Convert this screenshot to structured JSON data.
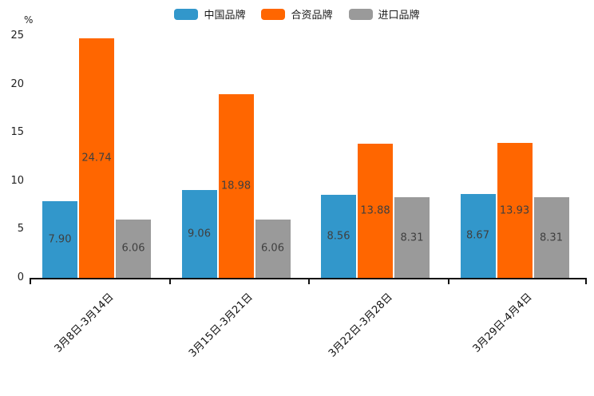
{
  "chart_data": {
    "type": "bar",
    "title": "",
    "ylabel": "%",
    "xlabel": "",
    "ylim": [
      0,
      25
    ],
    "yticks": [
      0,
      5,
      10,
      15,
      20,
      25
    ],
    "grid": false,
    "legend_position": "top",
    "value_labels_shown": true,
    "value_label_decimals": 2,
    "categories": [
      "3月8日-3月14日",
      "3月15日-3月21日",
      "3月22日-3月28日",
      "3月29日-4月4日"
    ],
    "series": [
      {
        "name": "中国品牌",
        "color": "#3297CB",
        "values": [
          7.9,
          9.06,
          8.56,
          8.67
        ]
      },
      {
        "name": "合资品牌",
        "color": "#FF6600",
        "values": [
          24.74,
          18.98,
          13.88,
          13.93
        ]
      },
      {
        "name": "进口品牌",
        "color": "#9A9A9A",
        "values": [
          6.06,
          6.06,
          8.31,
          8.31
        ]
      }
    ],
    "colors": {
      "axis": "#111111",
      "tick_text": "#222222",
      "value_label_text": "#3f3f3f"
    }
  }
}
